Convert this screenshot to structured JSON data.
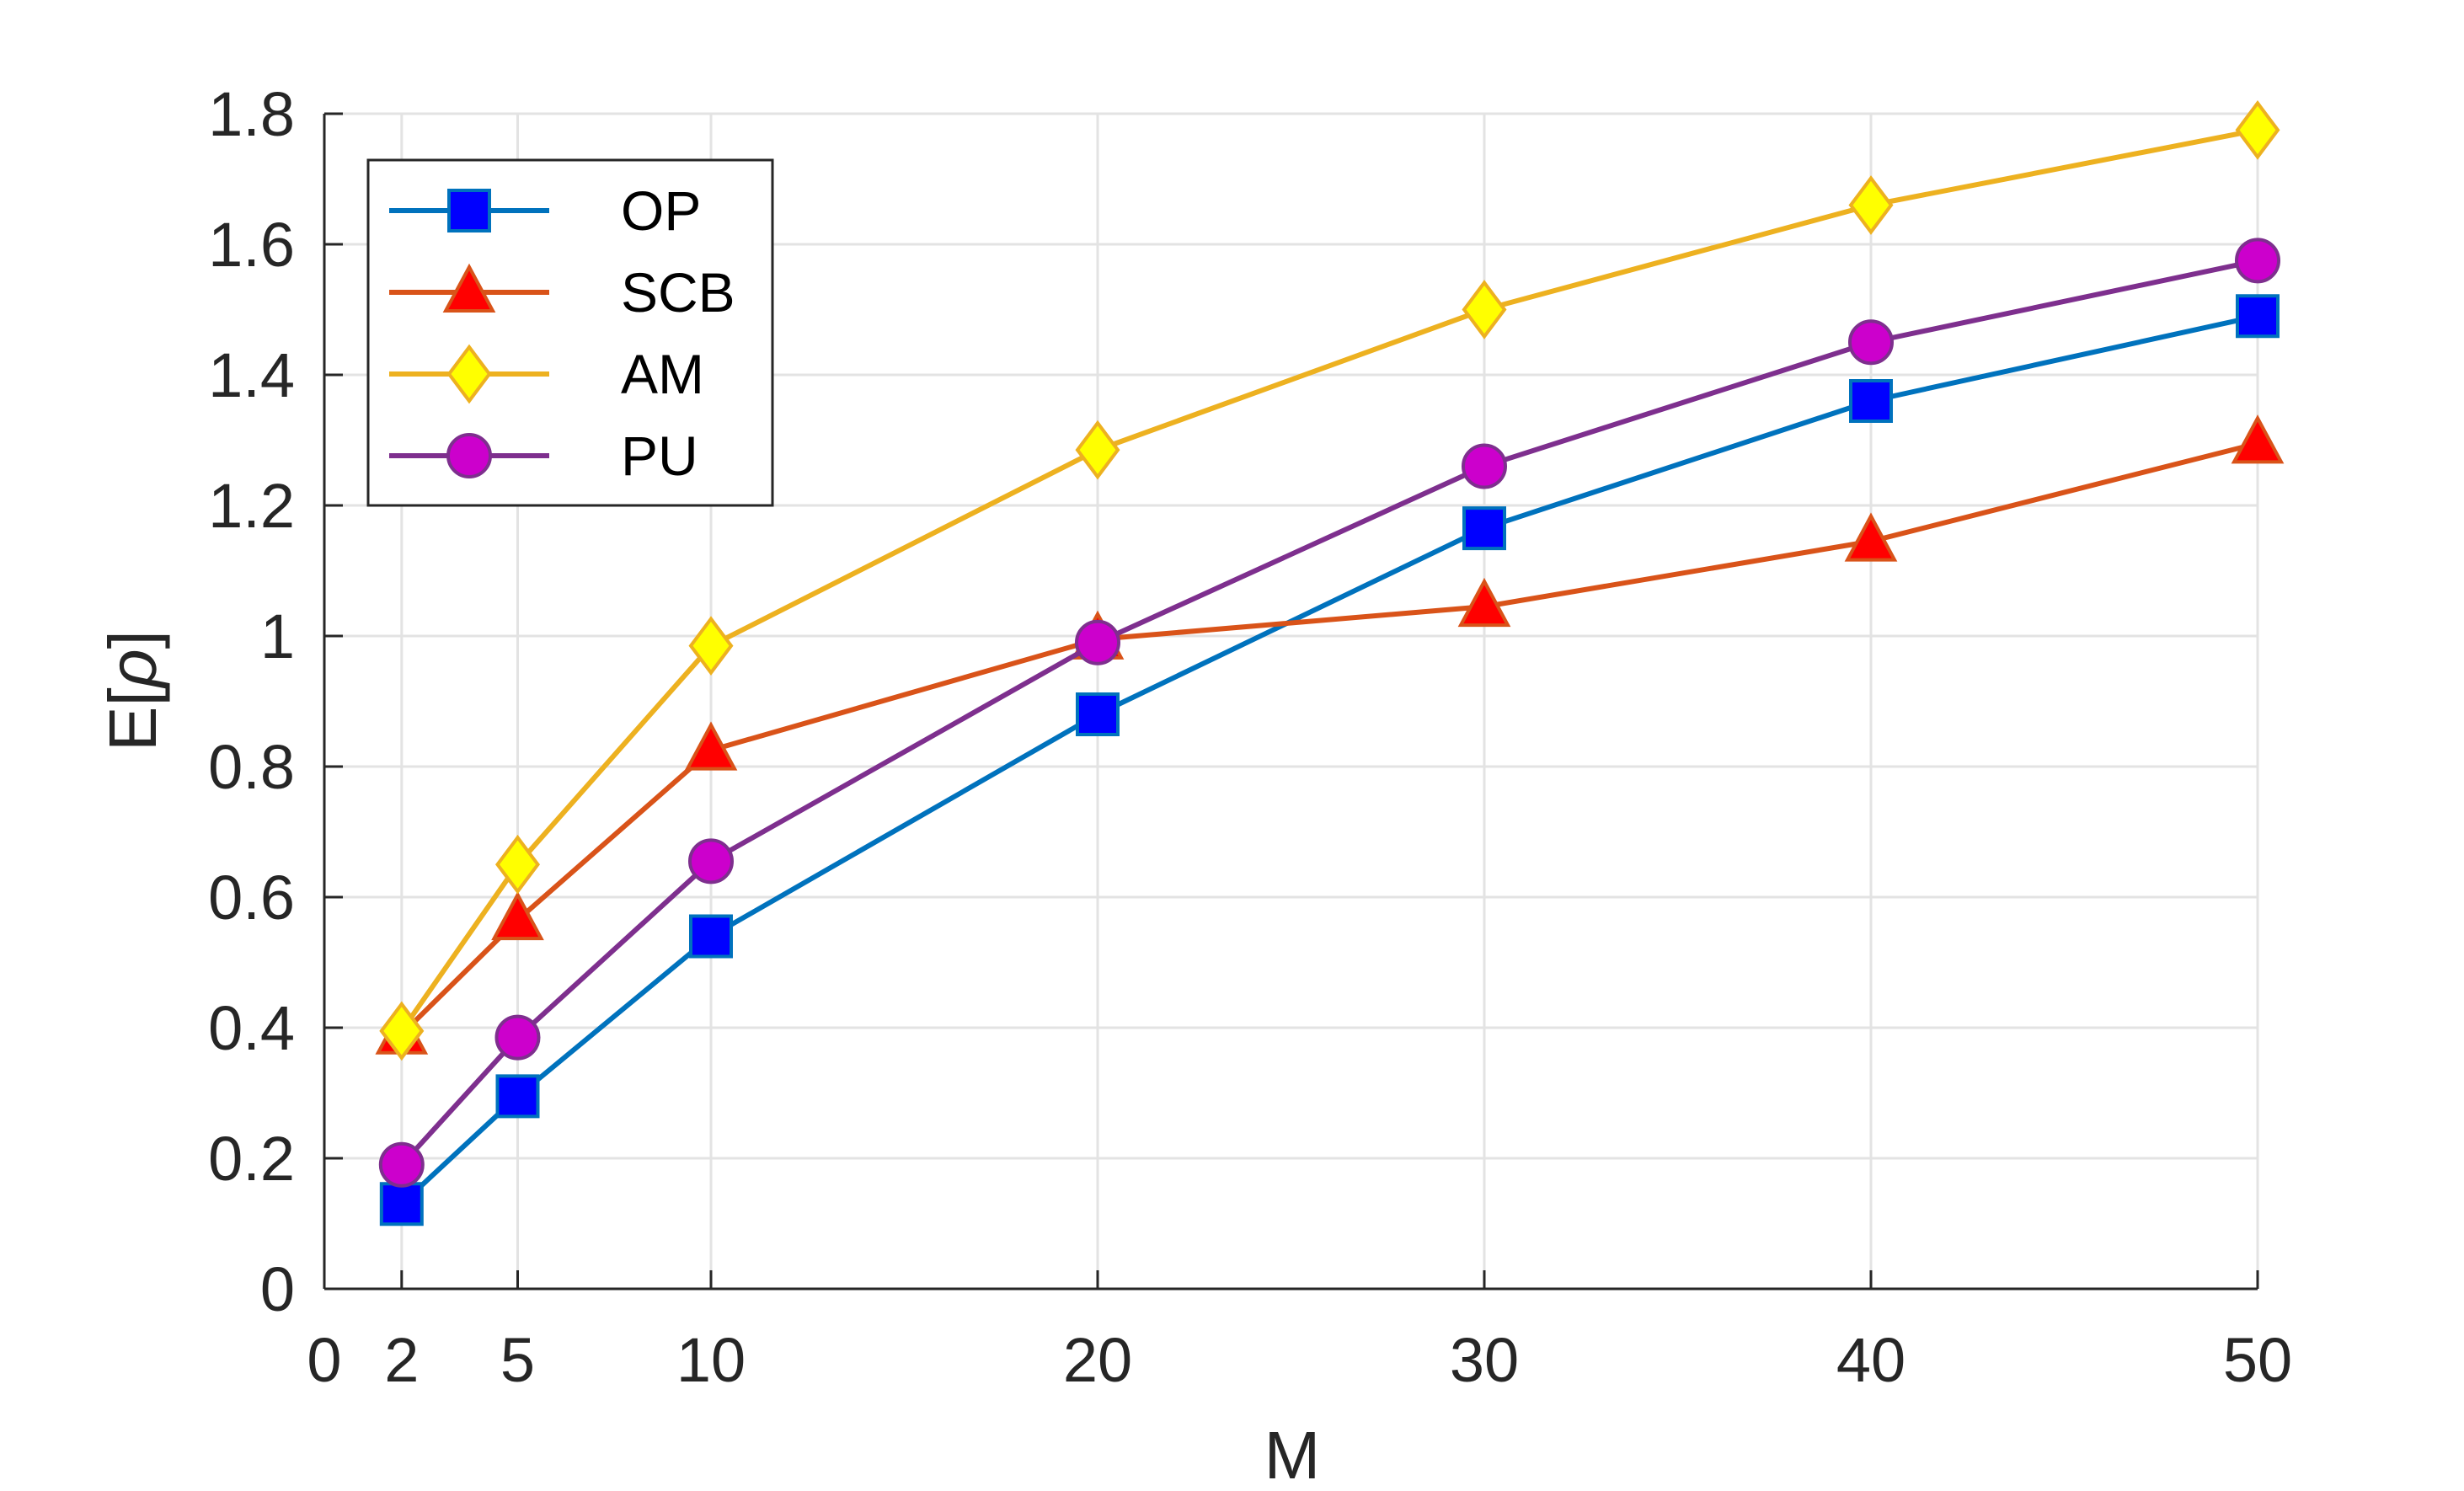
{
  "chart_data": {
    "type": "line",
    "x": [
      2,
      5,
      10,
      20,
      30,
      40,
      50
    ],
    "xlim": [
      0,
      50
    ],
    "ylim": [
      0,
      1.8
    ],
    "xticks": [
      0,
      2,
      5,
      10,
      20,
      30,
      40,
      50
    ],
    "yticks": [
      0,
      0.2,
      0.4,
      0.6,
      0.8,
      1,
      1.2,
      1.4,
      1.6,
      1.8
    ],
    "xtick_labels": [
      "0",
      "2",
      "5",
      "10",
      "20",
      "30",
      "40",
      "50"
    ],
    "ytick_labels": [
      "0",
      "0.2",
      "0.4",
      "0.6",
      "0.8",
      "1",
      "1.2",
      "1.4",
      "1.6",
      "1.8"
    ],
    "xlabel": "M",
    "ylabel_text": "E[",
    "ylabel_symbol": "ρ",
    "ylabel_close": "]",
    "grid": true,
    "legend_position": "top-left",
    "series": [
      {
        "name": "OP",
        "marker": "square",
        "line_color": "#0072BD",
        "marker_fill": "#0000FF",
        "marker_edge": "#0072BD",
        "values": [
          0.13,
          0.295,
          0.54,
          0.88,
          1.165,
          1.36,
          1.49
        ]
      },
      {
        "name": "SCB",
        "marker": "triangle",
        "line_color": "#D95319",
        "marker_fill": "#FF0000",
        "marker_edge": "#D95319",
        "values": [
          0.39,
          0.565,
          0.825,
          0.995,
          1.045,
          1.145,
          1.295
        ]
      },
      {
        "name": "AM",
        "marker": "diamond",
        "line_color": "#EDB120",
        "marker_fill": "#FFFF00",
        "marker_edge": "#EDB120",
        "values": [
          0.395,
          0.65,
          0.985,
          1.285,
          1.5,
          1.66,
          1.775
        ]
      },
      {
        "name": "PU",
        "marker": "circle",
        "line_color": "#7E2F8E",
        "marker_fill": "#CC00CC",
        "marker_edge": "#7E2F8E",
        "values": [
          0.19,
          0.385,
          0.655,
          0.99,
          1.26,
          1.45,
          1.575
        ]
      }
    ]
  }
}
